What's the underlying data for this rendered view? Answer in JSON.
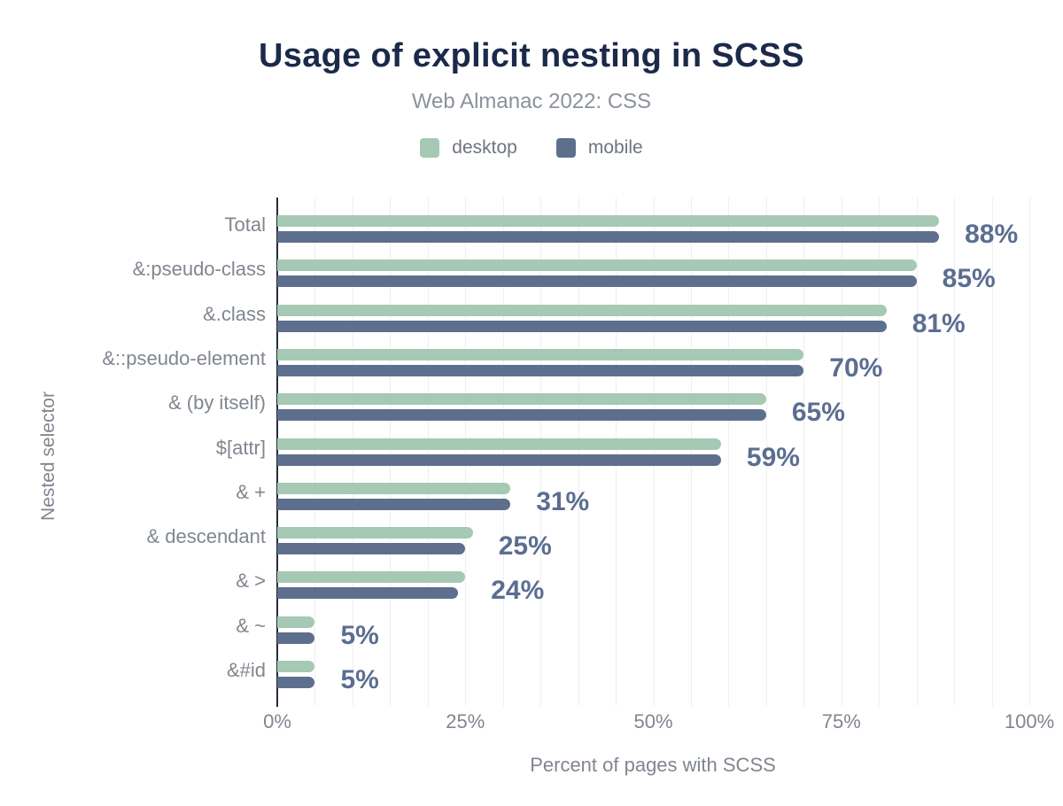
{
  "header": {
    "title": "Usage of explicit nesting in SCSS",
    "subtitle": "Web Almanac 2022: CSS"
  },
  "chart_data": {
    "type": "bar",
    "orientation": "horizontal",
    "title": "Usage of explicit nesting in SCSS",
    "subtitle": "Web Almanac 2022: CSS",
    "xlabel": "Percent of pages with SCSS",
    "ylabel": "Nested selector",
    "xlim": [
      0,
      100
    ],
    "grid": "vertical-minor",
    "gridline_step_percent": 5,
    "legend_position": "top",
    "x_ticks": [
      {
        "value": 0,
        "label": "0%"
      },
      {
        "value": 25,
        "label": "25%"
      },
      {
        "value": 50,
        "label": "50%"
      },
      {
        "value": 75,
        "label": "75%"
      },
      {
        "value": 100,
        "label": "100%"
      }
    ],
    "categories": [
      "Total",
      "&:pseudo-class",
      "&.class",
      "&::pseudo-element",
      "& (by itself)",
      "$[attr]",
      "& +",
      "& descendant",
      "& >",
      "& ~",
      "&#id"
    ],
    "series": [
      {
        "name": "desktop",
        "color": "#a5c9b4",
        "values": [
          88,
          85,
          81,
          70,
          65,
          59,
          31,
          26,
          25,
          5,
          5
        ]
      },
      {
        "name": "mobile",
        "color": "#5e6f8d",
        "values": [
          88,
          85,
          81,
          70,
          65,
          59,
          31,
          25,
          24,
          5,
          5
        ]
      }
    ],
    "value_labels": [
      "88%",
      "85%",
      "81%",
      "70%",
      "65%",
      "59%",
      "31%",
      "25%",
      "24%",
      "5%",
      "5%"
    ],
    "colors": {
      "title": "#1b2a4a",
      "subtitle": "#8c929c",
      "legend_label": "#6e757f",
      "category_label": "#80868f",
      "tick_label": "#80868f",
      "axis_title": "#80868f",
      "value_label": "#5b6e91",
      "axis_line": "#262c38",
      "gridline": "#efefef",
      "background": "#ffffff"
    }
  }
}
